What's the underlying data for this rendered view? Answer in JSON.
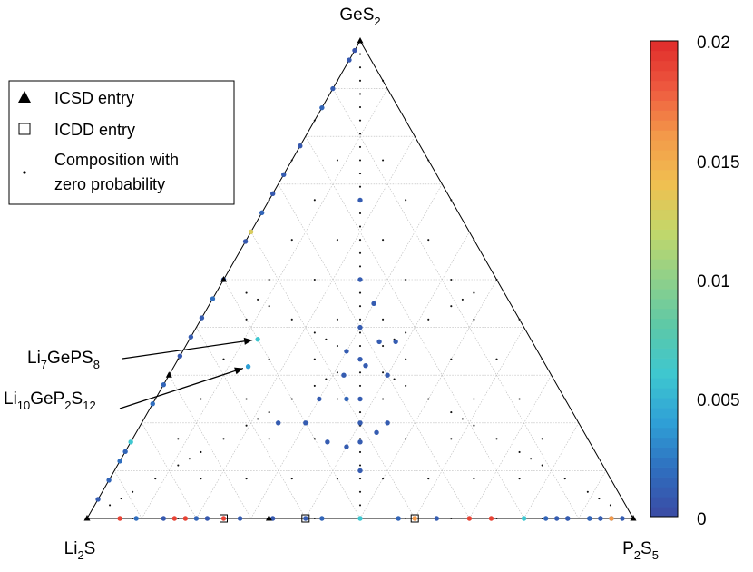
{
  "chart_data": {
    "type": "ternary-scatter",
    "vertices": {
      "top": {
        "base": "GeS",
        "sub": "2"
      },
      "left": {
        "base": "Li",
        "sub": "2",
        "tail": "S"
      },
      "right": {
        "base": "P",
        "sub": "2",
        "tail": "S",
        "sub2": "5"
      }
    },
    "coordinate_order": [
      "Li2S",
      "P2S5",
      "GeS2"
    ],
    "grid": true,
    "grid_divisions": 10,
    "legend": {
      "placement": "top-left",
      "entries": [
        {
          "marker": "filled-triangle",
          "label": "ICSD entry"
        },
        {
          "marker": "open-square",
          "label": "ICDD entry"
        },
        {
          "marker": "small-dot",
          "label_line1": "Composition with",
          "label_line2": "zero probability"
        }
      ]
    },
    "colorbar": {
      "min": 0,
      "max": 0.02,
      "ticks": [
        "0.02",
        "0.015",
        "0.01",
        "0.005",
        "0"
      ],
      "colors": [
        "#3b4aa3",
        "#2f6ebf",
        "#2fa0d6",
        "#3ec7d0",
        "#5cc8a8",
        "#8fd08a",
        "#c2d76a",
        "#f0c050",
        "#f39a4a",
        "#ee5a3f",
        "#e02b2b"
      ]
    },
    "annotations": [
      {
        "base": "Li",
        "sub1": "7",
        "mid": "GePS",
        "sub2": "8",
        "point": [
          0.5,
          0.125,
          0.375
        ]
      },
      {
        "base": "Li",
        "sub1": "10",
        "mid": "GeP",
        "sub2": "2",
        "mid2": "S",
        "sub3": "12",
        "point": [
          0.546,
          0.136,
          0.318
        ]
      }
    ],
    "icsd_points": [
      [
        0,
        0,
        1
      ],
      [
        0.5,
        0,
        0.5
      ],
      [
        0.667,
        0.333,
        0
      ],
      [
        0,
        1,
        0
      ],
      [
        1,
        0,
        0
      ],
      [
        0.7,
        0,
        0.3
      ]
    ],
    "icdd_points": [
      [
        0.75,
        0.25,
        0
      ],
      [
        0.6,
        0.4,
        0
      ],
      [
        0.4,
        0.6,
        0
      ]
    ],
    "colored_points": [
      [
        0.02,
        0,
        0.98,
        0.0005
      ],
      [
        0.04,
        0,
        0.96,
        0.0008
      ],
      [
        0.1,
        0,
        0.9,
        0.001
      ],
      [
        0.14,
        0,
        0.86,
        0.0015
      ],
      [
        0.22,
        0,
        0.78,
        0.0008
      ],
      [
        0.28,
        0,
        0.72,
        0.001
      ],
      [
        0.32,
        0,
        0.68,
        0.0008
      ],
      [
        0.36,
        0,
        0.64,
        0.0015
      ],
      [
        0.4,
        0,
        0.6,
        0.013
      ],
      [
        0.42,
        0,
        0.58,
        0.0008
      ],
      [
        0.5,
        0,
        0.5,
        0.001
      ],
      [
        0.54,
        0,
        0.46,
        0.002
      ],
      [
        0.58,
        0,
        0.42,
        0.001
      ],
      [
        0.62,
        0,
        0.38,
        0.001
      ],
      [
        0.66,
        0,
        0.34,
        0.0008
      ],
      [
        0.72,
        0,
        0.28,
        0.0015
      ],
      [
        0.76,
        0,
        0.24,
        0.002
      ],
      [
        0.84,
        0,
        0.16,
        0.006
      ],
      [
        0.86,
        0,
        0.14,
        0.0015
      ],
      [
        0.88,
        0,
        0.12,
        0.002
      ],
      [
        0.92,
        0,
        0.08,
        0.0015
      ],
      [
        0.96,
        0,
        0.04,
        0.001
      ],
      [
        0.02,
        0.98,
        0,
        0.001
      ],
      [
        0.04,
        0.96,
        0,
        0.0015
      ],
      [
        0.06,
        0.94,
        0,
        0.002
      ],
      [
        0.08,
        0.92,
        0,
        0.0008
      ],
      [
        0.12,
        0.88,
        0,
        0.001
      ],
      [
        0.94,
        0.06,
        0,
        0.019
      ],
      [
        0.91,
        0.09,
        0,
        0.002
      ],
      [
        0.86,
        0.14,
        0,
        0.0008
      ],
      [
        0.84,
        0.16,
        0,
        0.019
      ],
      [
        0.82,
        0.18,
        0,
        0.019
      ],
      [
        0.8,
        0.2,
        0,
        0.0015
      ],
      [
        0.78,
        0.22,
        0,
        0.0008
      ],
      [
        0.75,
        0.25,
        0,
        0.019
      ],
      [
        0.72,
        0.28,
        0,
        0.001
      ],
      [
        0.66,
        0.34,
        0,
        0.0008
      ],
      [
        0.6,
        0.4,
        0,
        0.001
      ],
      [
        0.57,
        0.43,
        0,
        0.0015
      ],
      [
        0.43,
        0.57,
        0,
        0.0015
      ],
      [
        0.4,
        0.6,
        0,
        0.016
      ],
      [
        0.36,
        0.64,
        0,
        0.001
      ],
      [
        0.3,
        0.7,
        0,
        0.019
      ],
      [
        0.26,
        0.74,
        0,
        0.019
      ],
      [
        0.2,
        0.8,
        0,
        0.006
      ],
      [
        0.16,
        0.84,
        0,
        0.0015
      ],
      [
        0.14,
        0.86,
        0,
        0.001
      ],
      [
        0.12,
        0.88,
        0,
        0.001
      ],
      [
        0.08,
        0.92,
        0,
        0.0015
      ],
      [
        0.06,
        0.94,
        0,
        0.001
      ],
      [
        0.04,
        0.96,
        0,
        0.016
      ],
      [
        0.5,
        0.125,
        0.375,
        0.006
      ],
      [
        0.546,
        0.136,
        0.318,
        0.004
      ],
      [
        0.5,
        0.5,
        0,
        0.006
      ],
      [
        0.167,
        0.167,
        0.667,
        0.001
      ],
      [
        0.25,
        0.25,
        0.5,
        0.001
      ],
      [
        0.333,
        0.333,
        0.333,
        0.001
      ],
      [
        0.4,
        0.4,
        0.2,
        0.001
      ],
      [
        0.45,
        0.45,
        0.1,
        0.001
      ],
      [
        0.375,
        0.375,
        0.25,
        0.001
      ],
      [
        0.3,
        0.3,
        0.4,
        0.001
      ],
      [
        0.35,
        0.45,
        0.2,
        0.001
      ],
      [
        0.4,
        0.35,
        0.25,
        0.0015
      ],
      [
        0.45,
        0.3,
        0.25,
        0.001
      ],
      [
        0.35,
        0.3,
        0.35,
        0.001
      ],
      [
        0.3,
        0.4,
        0.3,
        0.001
      ],
      [
        0.28,
        0.35,
        0.37,
        0.001
      ],
      [
        0.25,
        0.38,
        0.37,
        0.001
      ],
      [
        0.45,
        0.4,
        0.15,
        0.001
      ],
      [
        0.42,
        0.42,
        0.16,
        0.001
      ],
      [
        0.38,
        0.44,
        0.18,
        0.001
      ],
      [
        0.5,
        0.3,
        0.2,
        0.001
      ],
      [
        0.55,
        0.25,
        0.2,
        0.001
      ],
      [
        0.48,
        0.36,
        0.16,
        0.001
      ],
      [
        0.38,
        0.32,
        0.3,
        0.001
      ],
      [
        0.33,
        0.35,
        0.32,
        0.001
      ],
      [
        0.25,
        0.3,
        0.45,
        0.001
      ]
    ]
  }
}
